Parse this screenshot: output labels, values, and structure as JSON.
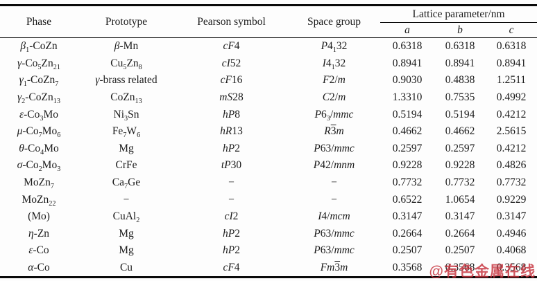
{
  "table": {
    "header": {
      "phase": "Phase",
      "prototype": "Prototype",
      "pearson": "Pearson symbol",
      "space_group": "Space group",
      "lattice": "Lattice parameter/nm",
      "sub_a": "a",
      "sub_b": "b",
      "sub_c": "c"
    },
    "rows": [
      {
        "phase": "*β*_1_-CoZn",
        "prototype": "*β*-Mn",
        "pearson": "*cF*4",
        "space_group": "*P*4_1_32",
        "a": "0.6318",
        "b": "0.6318",
        "c": "0.6318"
      },
      {
        "phase": "*γ*-Co_5_Zn_21_",
        "prototype": "Cu_5_Zn_8_",
        "pearson": "*cI*52",
        "space_group": "*I*4_1_32",
        "a": "0.8941",
        "b": "0.8941",
        "c": "0.8941"
      },
      {
        "phase": "*γ*_1_-CoZn_7_",
        "prototype": "*γ*-brass related",
        "pearson": "*cF*16",
        "space_group": "*F*2/*m*",
        "a": "0.9030",
        "b": "0.4838",
        "c": "1.2511"
      },
      {
        "phase": "*γ*_2_-CoZn_13_",
        "prototype": "CoZn_13_",
        "pearson": "*mS*28",
        "space_group": "*C*2/*m*",
        "a": "1.3310",
        "b": "0.7535",
        "c": "0.4992"
      },
      {
        "phase": "*ε*-Co_3_Mo",
        "prototype": "Ni_3_Sn",
        "pearson": "*hP*8",
        "space_group": "*P*6_3_/*mmc*",
        "a": "0.5194",
        "b": "0.5194",
        "c": "0.4212"
      },
      {
        "phase": "*μ*-Co_7_Mo_6_",
        "prototype": "Fe_7_W_6_",
        "pearson": "*hR*13",
        "space_group": "*R*^3^*m*",
        "a": "0.4662",
        "b": "0.4662",
        "c": "2.5615"
      },
      {
        "phase": "*θ*-Co_4_Mo",
        "prototype": "Mg",
        "pearson": "*hP*2",
        "space_group": "*P*63/*mmc*",
        "a": "0.2597",
        "b": "0.2597",
        "c": "0.4212"
      },
      {
        "phase": "*σ*-Co_2_Mo_3_",
        "prototype": "CrFe",
        "pearson": "*tP*30",
        "space_group": "*P*42/*mnm*",
        "a": "0.9228",
        "b": "0.9228",
        "c": "0.4826"
      },
      {
        "phase": "MoZn_7_",
        "prototype": "Ca_7_Ge",
        "pearson": "−",
        "space_group": "−",
        "a": "0.7732",
        "b": "0.7732",
        "c": "0.7732"
      },
      {
        "phase": "MoZn_22_",
        "prototype": "−",
        "pearson": "−",
        "space_group": "−",
        "a": "0.6522",
        "b": "1.0654",
        "c": "0.9229"
      },
      {
        "phase": "(Mo)",
        "prototype": "CuAl_2_",
        "pearson": "*cI*2",
        "space_group": "*I*4/*mcm*",
        "a": "0.3147",
        "b": "0.3147",
        "c": "0.3147"
      },
      {
        "phase": "*η*-Zn",
        "prototype": "Mg",
        "pearson": "*hP*2",
        "space_group": "*P*63/*mmc*",
        "a": "0.2664",
        "b": "0.2664",
        "c": "0.4946"
      },
      {
        "phase": "*ε*-Co",
        "prototype": "Mg",
        "pearson": "*hP*2",
        "space_group": "*P*63/*mmc*",
        "a": "0.2507",
        "b": "0.2507",
        "c": "0.4068"
      },
      {
        "phase": "*α*-Co",
        "prototype": "Cu",
        "pearson": "*cF*4",
        "space_group": "*Fm*^3^*m*",
        "a": "0.3568",
        "b": "0.3568",
        "c": "0.3568"
      }
    ]
  },
  "watermark": {
    "text": "@有色金属在线",
    "color": "#c7333e"
  },
  "colors": {
    "text": "#1b1b1b",
    "rule": "#0a0a0a",
    "background": "#fdfdfd"
  }
}
